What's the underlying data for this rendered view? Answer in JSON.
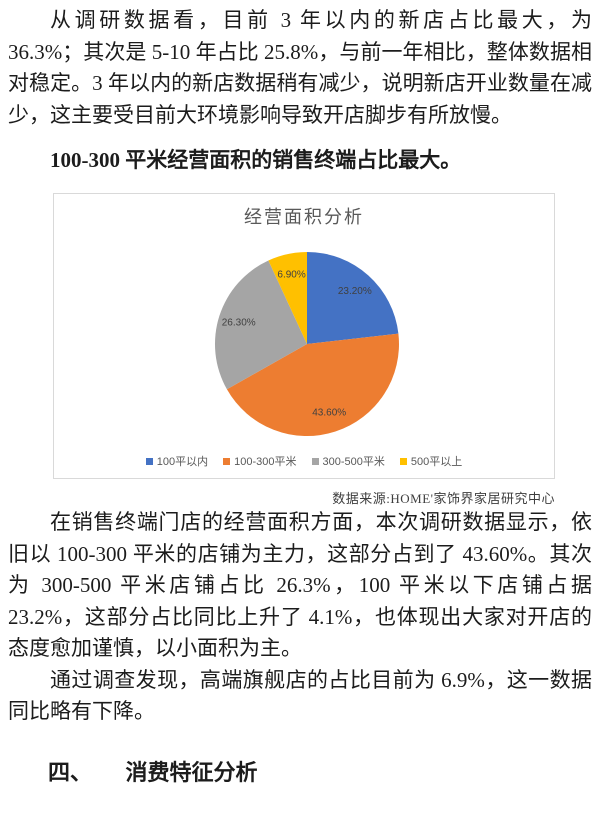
{
  "document": {
    "paragraphs": [
      "从调研数据看，目前 3 年以内的新店占比最大，为 36.3%；其次是 5-10 年占比 25.8%，与前一年相比，整体数据相对稳定。3 年以内的新店数据稍有减少，说明新店开业数量在减少，这主要受目前大环境影响导致开店脚步有所放慢。",
      "在销售终端门店的经营面积方面，本次调研数据显示，依旧以 100-300 平米的店铺为主力，这部分占到了 43.60%。其次为 300-500 平米店铺占比 26.3%，100 平米以下店铺占据 23.2%，这部分占比同比上升了 4.1%，也体现出大家对开店的态度愈加谨慎，以小面积为主。",
      "通过调查发现，高端旗舰店的占比目前为 6.9%，这一数据同比略有下降。"
    ],
    "heading1": "100-300 平米经营面积的销售终端占比最大。",
    "heading2": {
      "number": "四、",
      "text": "消费特征分析"
    },
    "source_note": "数据来源:HOME'家饰界家居研究中心"
  },
  "chart_data": {
    "type": "pie",
    "title": "经营面积分析",
    "categories": [
      "100平以内",
      "100-300平米",
      "300-500平米",
      "500平以上"
    ],
    "values": [
      23.2,
      43.6,
      26.3,
      6.9
    ],
    "data_labels": [
      "23.20%",
      "43.60%",
      "26.30%",
      "6.90%"
    ],
    "colors": [
      "#4472C4",
      "#ED7D31",
      "#A5A5A5",
      "#FFC000"
    ],
    "label_color": "#404040",
    "legend_position": "bottom",
    "start_angle_deg": 0,
    "direction": "clockwise"
  }
}
